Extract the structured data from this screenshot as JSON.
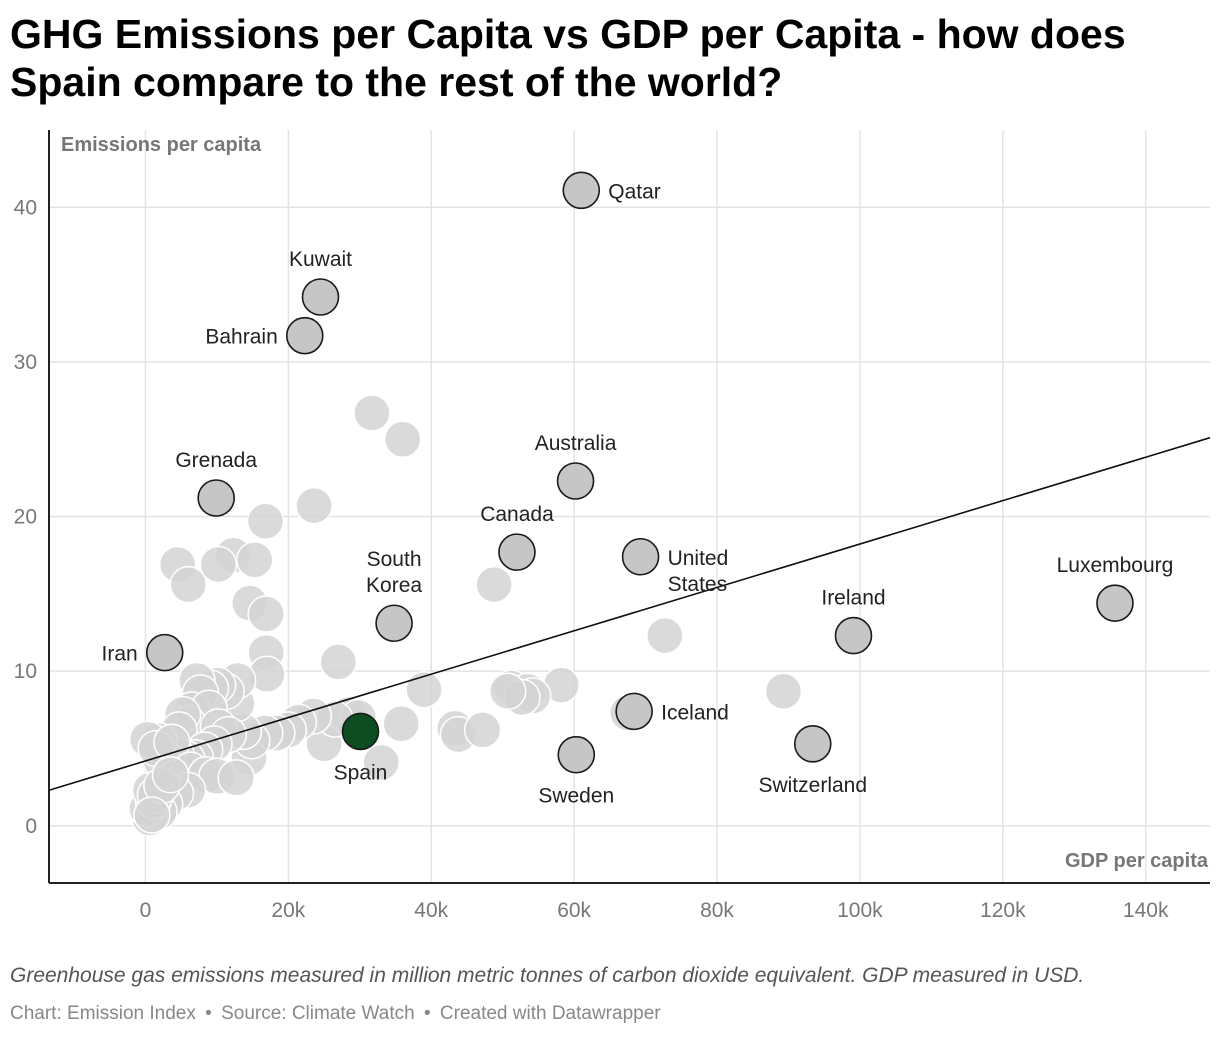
{
  "title": "GHG Emissions per Capita vs GDP per Capita - how does Spain compare to the rest of the world?",
  "notes": "Greenhouse gas emissions measured in million metric tonnes of carbon dioxide equivalent. GDP measured in USD.",
  "credit": {
    "chart": "Chart: Emission Index",
    "source": "Source: Climate Watch",
    "tool": "Created with Datawrapper",
    "separator": "•"
  },
  "colors": {
    "highlight": "#0e4d1f",
    "labeled": "#c6c6c6",
    "background_points": "#d3d3d3",
    "grid": "#e3e3e3",
    "trend": "#111111"
  },
  "chart_data": {
    "type": "scatter",
    "xlabel": "GDP per capita",
    "ylabel": "Emissions per capita",
    "xlim": [
      -13500,
      149000
    ],
    "ylim": [
      -3.7,
      45
    ],
    "x_ticks": [
      0,
      20000,
      40000,
      60000,
      80000,
      100000,
      120000,
      140000
    ],
    "x_tick_labels": [
      "0",
      "20k",
      "40k",
      "60k",
      "80k",
      "100k",
      "120k",
      "140k"
    ],
    "y_ticks": [
      0,
      10,
      20,
      30,
      40
    ],
    "y_tick_labels": [
      "0",
      "10",
      "20",
      "30",
      "40"
    ],
    "grid": true,
    "trend_line": [
      [
        -13500,
        2.3
      ],
      [
        149000,
        25.1
      ]
    ],
    "labeled_points": [
      {
        "label": "Qatar",
        "x": 61000,
        "y": 41.1
      },
      {
        "label": "Kuwait",
        "x": 24500,
        "y": 34.2
      },
      {
        "label": "Bahrain",
        "x": 22300,
        "y": 31.7
      },
      {
        "label": "Grenada",
        "x": 9900,
        "y": 21.2
      },
      {
        "label": "Australia",
        "x": 60200,
        "y": 22.3
      },
      {
        "label": "Canada",
        "x": 52000,
        "y": 17.7
      },
      {
        "label": "United States",
        "x": 69300,
        "y": 17.4
      },
      {
        "label": "South Korea",
        "x": 34800,
        "y": 13.1
      },
      {
        "label": "Luxembourg",
        "x": 135700,
        "y": 14.4
      },
      {
        "label": "Ireland",
        "x": 99100,
        "y": 12.3
      },
      {
        "label": "Iran",
        "x": 2700,
        "y": 11.2
      },
      {
        "label": "Iceland",
        "x": 68400,
        "y": 7.4
      },
      {
        "label": "Switzerland",
        "x": 93400,
        "y": 5.3
      },
      {
        "label": "Sweden",
        "x": 60300,
        "y": 4.6
      },
      {
        "label": "Spain",
        "x": 30100,
        "y": 6.1,
        "highlight": true
      }
    ],
    "other_points": [
      [
        31700,
        26.7
      ],
      [
        36000,
        25.0
      ],
      [
        23600,
        20.7
      ],
      [
        16800,
        19.7
      ],
      [
        12300,
        17.5
      ],
      [
        15300,
        17.2
      ],
      [
        10200,
        16.9
      ],
      [
        4500,
        16.9
      ],
      [
        6000,
        15.6
      ],
      [
        14600,
        14.4
      ],
      [
        16900,
        13.7
      ],
      [
        16900,
        11.2
      ],
      [
        17000,
        9.8
      ],
      [
        27000,
        10.6
      ],
      [
        48800,
        15.6
      ],
      [
        72700,
        12.3
      ],
      [
        89300,
        8.7
      ],
      [
        39000,
        8.8
      ],
      [
        58200,
        9.1
      ],
      [
        51200,
        8.9
      ],
      [
        53500,
        8.7
      ],
      [
        54200,
        8.4
      ],
      [
        52700,
        8.3
      ],
      [
        50700,
        8.7
      ],
      [
        67500,
        7.3
      ],
      [
        43300,
        6.3
      ],
      [
        43800,
        5.9
      ],
      [
        47200,
        6.2
      ],
      [
        35800,
        6.6
      ],
      [
        33000,
        4.1
      ],
      [
        25000,
        5.3
      ],
      [
        28500,
        7.2
      ],
      [
        29800,
        7.0
      ],
      [
        26500,
        6.9
      ],
      [
        23500,
        7.1
      ],
      [
        21400,
        6.7
      ],
      [
        20000,
        6.2
      ],
      [
        18400,
        6.0
      ],
      [
        16700,
        6.0
      ],
      [
        14500,
        4.4
      ],
      [
        14900,
        5.5
      ],
      [
        13700,
        6.1
      ],
      [
        12800,
        7.9
      ],
      [
        12900,
        9.4
      ],
      [
        11300,
        8.7
      ],
      [
        10100,
        9.1
      ],
      [
        9100,
        8.9
      ],
      [
        7200,
        9.4
      ],
      [
        7700,
        8.6
      ],
      [
        6500,
        7.5
      ],
      [
        8900,
        7.6
      ],
      [
        6000,
        6.6
      ],
      [
        5200,
        7.2
      ],
      [
        4700,
        6.2
      ],
      [
        10200,
        6.4
      ],
      [
        11600,
        5.9
      ],
      [
        9600,
        5.3
      ],
      [
        8300,
        4.9
      ],
      [
        7000,
        4.4
      ],
      [
        5800,
        4.3
      ],
      [
        4300,
        4.6
      ],
      [
        3200,
        4.2
      ],
      [
        2200,
        4.2
      ],
      [
        1900,
        5.5
      ],
      [
        300,
        5.6
      ],
      [
        1500,
        5.0
      ],
      [
        3700,
        5.4
      ],
      [
        4300,
        3.1
      ],
      [
        6300,
        3.6
      ],
      [
        8500,
        3.3
      ],
      [
        10000,
        3.2
      ],
      [
        12700,
        3.1
      ],
      [
        5900,
        2.3
      ],
      [
        4200,
        2.1
      ],
      [
        2700,
        1.4
      ],
      [
        1900,
        0.9
      ],
      [
        600,
        0.5
      ],
      [
        200,
        1.1
      ],
      [
        1100,
        1.6
      ],
      [
        700,
        2.3
      ],
      [
        1400,
        2.0
      ],
      [
        2300,
        2.6
      ],
      [
        3500,
        3.3
      ],
      [
        900,
        0.7
      ]
    ]
  }
}
